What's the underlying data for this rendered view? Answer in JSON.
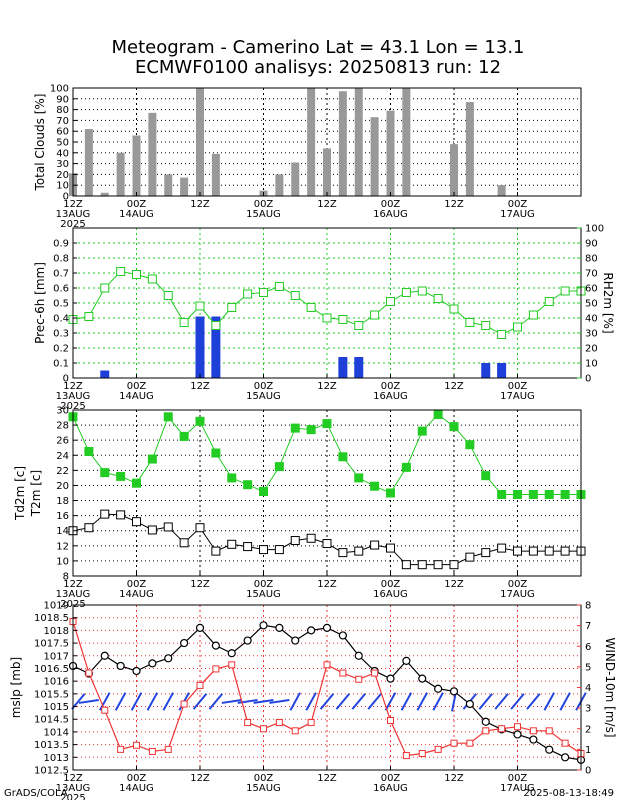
{
  "title_line1": "Meteogram - Camerino Lat = 43.1 Lon = 13.1",
  "title_line2": "ECMWF0100 analisys: 20250813 run: 12",
  "footer_left": "GrADS/COLA",
  "footer_right": "2025-08-13-18:49",
  "time_labels": [
    {
      "top": "12Z",
      "bottom": "13AUG",
      "year": "2025"
    },
    {
      "top": "00Z",
      "bottom": "14AUG"
    },
    {
      "top": "12Z",
      "bottom": ""
    },
    {
      "top": "00Z",
      "bottom": "15AUG"
    },
    {
      "top": "12Z",
      "bottom": ""
    },
    {
      "top": "00Z",
      "bottom": "16AUG"
    },
    {
      "top": "12Z",
      "bottom": ""
    },
    {
      "top": "00Z",
      "bottom": "17AUG"
    }
  ],
  "colors": {
    "bars": "#999999",
    "precip": "#1f3fd9",
    "rh": "#22cc22",
    "t2m": "#22cc22",
    "td2m": "#000000",
    "mslp": "#000000",
    "wind": "#ee3333",
    "barbs": "#2244dd",
    "grid": "#000000"
  },
  "chart_data": [
    {
      "type": "bar",
      "ylabel": "Total Clouds [%]",
      "ylim": [
        0,
        100
      ],
      "yticks": [
        0,
        10,
        20,
        30,
        40,
        50,
        60,
        70,
        80,
        90,
        100
      ],
      "x_hours": [
        0,
        3,
        6,
        9,
        12,
        15,
        18,
        21,
        24,
        27,
        30,
        33,
        36,
        39,
        42,
        45,
        48,
        51,
        54,
        57,
        60,
        63,
        66,
        69,
        72,
        75,
        78,
        81,
        84,
        87,
        90,
        93,
        96
      ],
      "values": [
        21,
        62,
        3,
        40,
        56,
        77,
        20,
        17,
        100,
        39,
        0,
        0,
        5,
        20,
        31,
        100,
        44,
        97,
        100,
        73,
        79,
        100,
        0,
        0,
        48,
        87,
        0,
        10,
        0,
        0,
        0,
        0,
        0
      ],
      "color": "#999999"
    },
    {
      "type": "bar+line",
      "ylabel": "Prec-6h [mm]",
      "y2label": "RH2m [%]",
      "ylim": [
        0,
        1
      ],
      "yticks": [
        0,
        0.1,
        0.2,
        0.3,
        0.4,
        0.5,
        0.6,
        0.7,
        0.8,
        0.9
      ],
      "y2lim": [
        0,
        100
      ],
      "y2ticks": [
        0,
        10,
        20,
        30,
        40,
        50,
        60,
        70,
        80,
        90,
        100
      ],
      "precip": {
        "name": "Prec-6h",
        "x_hours": [
          6,
          24,
          27,
          51,
          54,
          78,
          81
        ],
        "values": [
          0.05,
          0.41,
          0.41,
          0.14,
          0.14,
          0.1,
          0.1
        ]
      },
      "rh": {
        "name": "RH2m",
        "x_hours": [
          0,
          3,
          6,
          9,
          12,
          15,
          18,
          21,
          24,
          27,
          30,
          33,
          36,
          39,
          42,
          45,
          48,
          51,
          54,
          57,
          60,
          63,
          66,
          69,
          72,
          75,
          78,
          81,
          84,
          87,
          90,
          93,
          96
        ],
        "values": [
          39,
          41,
          60,
          71,
          69,
          66,
          55,
          37,
          48,
          35,
          47,
          56,
          57,
          61,
          55,
          47,
          40,
          39,
          35,
          42,
          51,
          57,
          58,
          53,
          46,
          37,
          35,
          29,
          34,
          42,
          51,
          58,
          58
        ]
      }
    },
    {
      "type": "line",
      "ylabel": "Td2m [c]",
      "ylabel2": "T2m [c]",
      "ylim": [
        8,
        30
      ],
      "yticks": [
        8,
        10,
        12,
        14,
        16,
        18,
        20,
        22,
        24,
        26,
        28,
        30
      ],
      "t2m": {
        "name": "T2m",
        "x_hours": [
          0,
          3,
          6,
          9,
          12,
          15,
          18,
          21,
          24,
          27,
          30,
          33,
          36,
          39,
          42,
          45,
          48,
          51,
          54,
          57,
          60,
          63,
          66,
          69,
          72,
          75,
          78,
          81,
          84,
          87,
          90,
          93,
          96
        ],
        "values": [
          29.1,
          24.5,
          21.7,
          21.2,
          20.3,
          23.5,
          29.1,
          26.5,
          28.5,
          24.3,
          21.0,
          20.1,
          19.2,
          22.5,
          27.6,
          27.4,
          28.2,
          23.8,
          21.0,
          19.9,
          19.0,
          22.4,
          27.2,
          29.4,
          27.8,
          25.4,
          21.3,
          18.8,
          18.8,
          18.8,
          18.8,
          18.8,
          18.8
        ]
      },
      "td2m": {
        "name": "Td2m",
        "x_hours": [
          0,
          3,
          6,
          9,
          12,
          15,
          18,
          21,
          24,
          27,
          30,
          33,
          36,
          39,
          42,
          45,
          48,
          51,
          54,
          57,
          60,
          63,
          66,
          69,
          72,
          75,
          78,
          81,
          84,
          87,
          90,
          93,
          96
        ],
        "values": [
          14.0,
          14.4,
          16.2,
          16.1,
          15.2,
          14.1,
          14.5,
          12.4,
          14.4,
          11.3,
          12.2,
          11.9,
          11.5,
          11.5,
          12.7,
          13.0,
          12.3,
          11.1,
          11.3,
          12.1,
          11.7,
          9.5,
          9.5,
          9.5,
          9.5,
          10.5,
          11.1,
          11.7,
          11.3,
          11.3,
          11.3,
          11.3,
          11.3
        ]
      }
    },
    {
      "type": "line",
      "ylabel": "mslp [mb]",
      "y2label": "WIND-10m [m/s]",
      "ylim": [
        1012.5,
        1019
      ],
      "yticks": [
        1012.5,
        1013,
        1013.5,
        1014,
        1014.5,
        1015,
        1015.5,
        1016,
        1016.5,
        1017,
        1017.5,
        1018,
        1018.5,
        1019
      ],
      "y2lim": [
        0,
        8
      ],
      "y2ticks": [
        0,
        1,
        2,
        3,
        4,
        5,
        6,
        7,
        8
      ],
      "mslp": {
        "name": "mslp",
        "x_hours": [
          0,
          3,
          6,
          9,
          12,
          15,
          18,
          21,
          24,
          27,
          30,
          33,
          36,
          39,
          42,
          45,
          48,
          51,
          54,
          57,
          60,
          63,
          66,
          69,
          72,
          75,
          78,
          81,
          84,
          87,
          90,
          93,
          96
        ],
        "values": [
          1016.6,
          1016.3,
          1017.0,
          1016.6,
          1016.4,
          1016.7,
          1016.9,
          1017.5,
          1018.1,
          1017.4,
          1017.1,
          1017.6,
          1018.2,
          1018.1,
          1017.6,
          1018.0,
          1018.1,
          1017.8,
          1017.0,
          1016.4,
          1016.1,
          1016.8,
          1016.1,
          1015.7,
          1015.6,
          1015.1,
          1014.4,
          1014.1,
          1013.9,
          1013.7,
          1013.3,
          1013.0,
          1012.9
        ]
      },
      "wind": {
        "name": "WIND-10m",
        "x_hours": [
          0,
          3,
          6,
          9,
          12,
          15,
          18,
          21,
          24,
          27,
          30,
          33,
          36,
          39,
          42,
          45,
          48,
          51,
          54,
          57,
          60,
          63,
          66,
          69,
          72,
          75,
          78,
          81,
          84,
          87,
          90,
          93,
          96
        ],
        "values": [
          7.2,
          4.7,
          2.9,
          1.0,
          1.2,
          0.9,
          1.0,
          3.2,
          4.1,
          4.9,
          5.1,
          2.3,
          2.0,
          2.3,
          1.9,
          2.3,
          5.1,
          4.7,
          4.4,
          4.7,
          2.4,
          0.7,
          0.8,
          1.0,
          1.3,
          1.3,
          1.9,
          2.0,
          2.1,
          1.9,
          1.9,
          1.3,
          0.8
        ]
      },
      "barbs_x_hours": [
        1,
        3,
        6,
        9,
        12,
        15,
        18,
        21,
        24,
        27,
        30,
        33,
        36,
        39,
        42,
        45,
        48,
        51,
        54,
        57,
        60,
        63,
        66,
        69,
        72,
        75,
        78,
        81,
        84,
        87,
        90,
        93,
        96
      ],
      "barbs_dir": [
        "ne",
        "w",
        "sw",
        "sw",
        "sw",
        "sw",
        "sw",
        "sw",
        "ne",
        "ne",
        "w",
        "w",
        "w",
        "w",
        "sw",
        "sw",
        "ne",
        "ne",
        "ne",
        "ne",
        "sw",
        "sw",
        "sw",
        "sw",
        "n",
        "ne",
        "ne",
        "ne",
        "ne",
        "ne",
        "sw",
        "sw",
        "sw"
      ]
    }
  ]
}
